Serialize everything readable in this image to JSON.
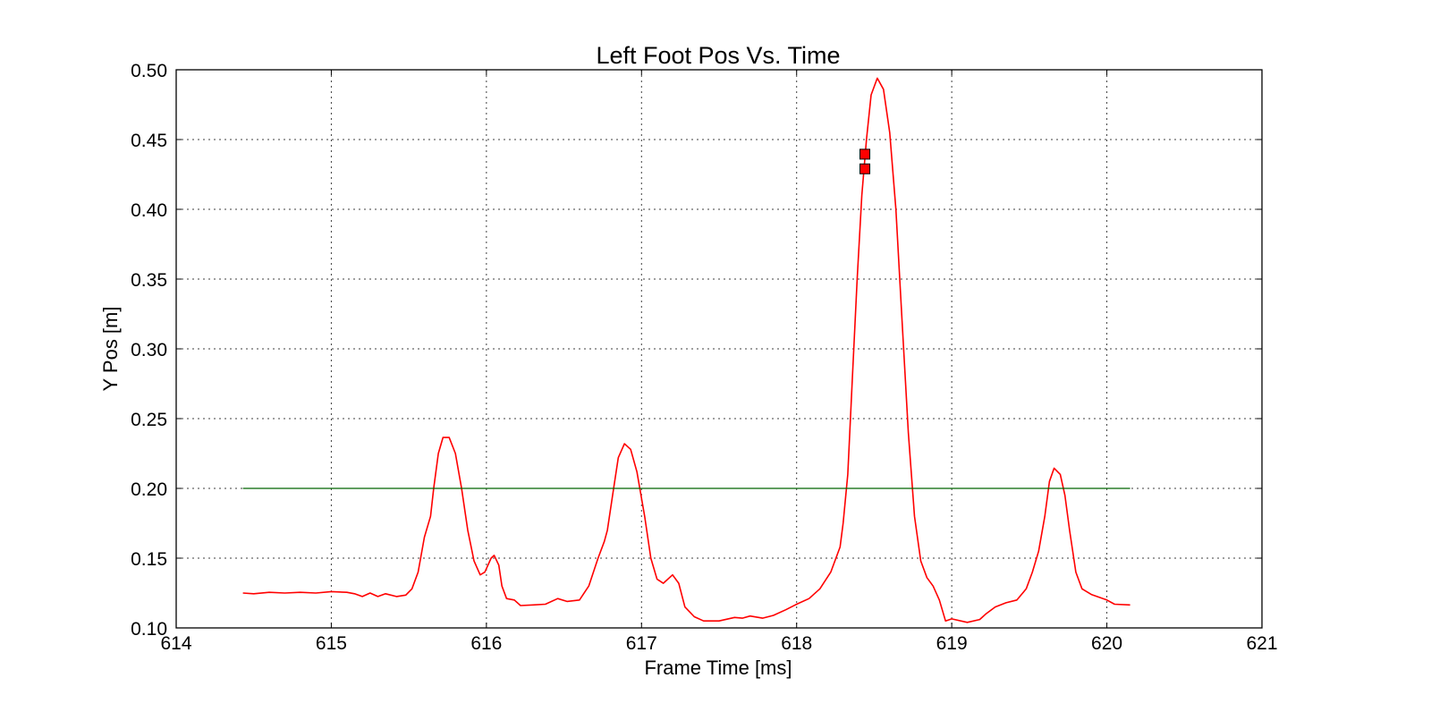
{
  "chart_data": {
    "type": "line",
    "title": "Left Foot Pos Vs. Time",
    "xlabel": "Frame Time [ms]",
    "ylabel": "Y Pos [m]",
    "xlim": [
      614,
      621
    ],
    "ylim": [
      0.1,
      0.5
    ],
    "xticks": [
      "614",
      "615",
      "616",
      "617",
      "618",
      "619",
      "620",
      "621"
    ],
    "yticks": [
      "0.10",
      "0.15",
      "0.20",
      "0.25",
      "0.30",
      "0.35",
      "0.40",
      "0.45",
      "0.50"
    ],
    "grid": true,
    "colors": {
      "position": "#ff0000",
      "threshold": "#006400",
      "markers": "#ff0000"
    },
    "series": [
      {
        "values": [
          [
            614.43,
            0.125
          ],
          [
            614.5,
            0.1245
          ],
          [
            614.6,
            0.1255
          ],
          [
            614.7,
            0.125
          ],
          [
            614.8,
            0.1255
          ],
          [
            614.9,
            0.125
          ],
          [
            615.0,
            0.126
          ],
          [
            615.1,
            0.1255
          ],
          [
            615.15,
            0.1245
          ],
          [
            615.2,
            0.1225
          ],
          [
            615.25,
            0.125
          ],
          [
            615.3,
            0.1225
          ],
          [
            615.35,
            0.1245
          ],
          [
            615.42,
            0.1225
          ],
          [
            615.48,
            0.1235
          ],
          [
            615.52,
            0.128
          ],
          [
            615.56,
            0.14
          ],
          [
            615.6,
            0.165
          ],
          [
            615.64,
            0.18
          ],
          [
            615.66,
            0.2
          ],
          [
            615.69,
            0.225
          ],
          [
            615.72,
            0.2365
          ],
          [
            615.76,
            0.2365
          ],
          [
            615.8,
            0.225
          ],
          [
            615.84,
            0.2
          ],
          [
            615.88,
            0.17
          ],
          [
            615.92,
            0.148
          ],
          [
            615.96,
            0.138
          ],
          [
            615.99,
            0.14
          ],
          [
            616.03,
            0.15
          ],
          [
            616.05,
            0.152
          ],
          [
            616.08,
            0.145
          ],
          [
            616.1,
            0.13
          ],
          [
            616.13,
            0.121
          ],
          [
            616.18,
            0.12
          ],
          [
            616.22,
            0.116
          ],
          [
            616.3,
            0.1165
          ],
          [
            616.38,
            0.117
          ],
          [
            616.46,
            0.121
          ],
          [
            616.52,
            0.119
          ],
          [
            616.6,
            0.12
          ],
          [
            616.66,
            0.13
          ],
          [
            616.72,
            0.15
          ],
          [
            616.76,
            0.162
          ],
          [
            616.78,
            0.17
          ],
          [
            616.82,
            0.2
          ],
          [
            616.85,
            0.222
          ],
          [
            616.89,
            0.232
          ],
          [
            616.93,
            0.228
          ],
          [
            616.97,
            0.212
          ],
          [
            617.02,
            0.18
          ],
          [
            617.06,
            0.15
          ],
          [
            617.1,
            0.135
          ],
          [
            617.14,
            0.132
          ],
          [
            617.2,
            0.138
          ],
          [
            617.24,
            0.132
          ],
          [
            617.28,
            0.115
          ],
          [
            617.34,
            0.108
          ],
          [
            617.4,
            0.105
          ],
          [
            617.5,
            0.105
          ],
          [
            617.6,
            0.1075
          ],
          [
            617.65,
            0.107
          ],
          [
            617.7,
            0.1085
          ],
          [
            617.78,
            0.107
          ],
          [
            617.85,
            0.109
          ],
          [
            617.93,
            0.113
          ],
          [
            618.0,
            0.117
          ],
          [
            618.08,
            0.121
          ],
          [
            618.15,
            0.128
          ],
          [
            618.22,
            0.14
          ],
          [
            618.28,
            0.158
          ],
          [
            618.3,
            0.175
          ],
          [
            618.33,
            0.21
          ],
          [
            618.36,
            0.28
          ],
          [
            618.39,
            0.35
          ],
          [
            618.42,
            0.41
          ],
          [
            618.45,
            0.45
          ],
          [
            618.48,
            0.482
          ],
          [
            618.52,
            0.494
          ],
          [
            618.56,
            0.486
          ],
          [
            618.6,
            0.455
          ],
          [
            618.64,
            0.4
          ],
          [
            618.68,
            0.32
          ],
          [
            618.72,
            0.24
          ],
          [
            618.76,
            0.18
          ],
          [
            618.8,
            0.148
          ],
          [
            618.84,
            0.136
          ],
          [
            618.88,
            0.13
          ],
          [
            618.92,
            0.12
          ],
          [
            618.96,
            0.105
          ],
          [
            619.0,
            0.1065
          ],
          [
            619.1,
            0.104
          ],
          [
            619.18,
            0.106
          ],
          [
            619.22,
            0.11
          ],
          [
            619.28,
            0.115
          ],
          [
            619.35,
            0.118
          ],
          [
            619.42,
            0.12
          ],
          [
            619.48,
            0.128
          ],
          [
            619.52,
            0.14
          ],
          [
            619.56,
            0.155
          ],
          [
            619.6,
            0.18
          ],
          [
            619.63,
            0.205
          ],
          [
            619.66,
            0.2145
          ],
          [
            619.7,
            0.21
          ],
          [
            619.73,
            0.195
          ],
          [
            619.76,
            0.17
          ],
          [
            619.8,
            0.14
          ],
          [
            619.84,
            0.128
          ],
          [
            619.9,
            0.124
          ],
          [
            620.0,
            0.12
          ],
          [
            620.05,
            0.117
          ],
          [
            620.15,
            0.1165
          ]
        ]
      },
      {
        "values": [
          [
            614.43,
            0.2
          ],
          [
            620.15,
            0.2
          ]
        ]
      }
    ],
    "markers": [
      {
        "x": 618.44,
        "y": 0.4395
      },
      {
        "x": 618.44,
        "y": 0.429
      }
    ]
  }
}
